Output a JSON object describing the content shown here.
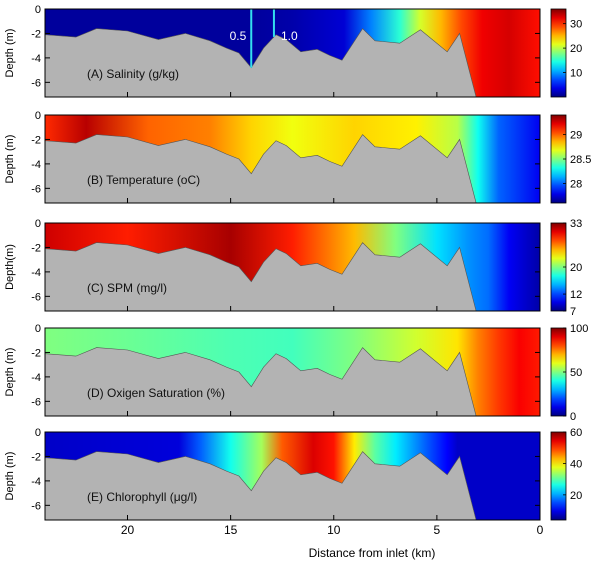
{
  "figure": {
    "xlabel": "Distance from inlet (km)",
    "x_ticks": [
      20,
      15,
      10,
      5,
      0
    ],
    "colors": {
      "bathymetry": "#b3b3b3",
      "salinity_line": "#33ddee",
      "frame": "#000000"
    }
  },
  "chart_data": [
    {
      "type": "heatmap",
      "id": "salinity",
      "title": "(A) Salinity (g/kg)",
      "ylabel": "Depth (m)",
      "xlim": [
        24,
        0
      ],
      "ylim": [
        -7.2,
        0
      ],
      "y_ticks": [
        0,
        -2,
        -4,
        -6
      ],
      "colorbar": {
        "range": [
          0,
          36
        ],
        "ticks": [
          10,
          20,
          30
        ]
      },
      "isolines": [
        {
          "label": "0.5",
          "x": 14
        },
        {
          "label": "1.0",
          "x": 12.9
        }
      ],
      "nodes": [
        {
          "x": 24,
          "v": 1
        },
        {
          "x": 14,
          "v": 1
        },
        {
          "x": 12,
          "v": 1.5
        },
        {
          "x": 9.5,
          "v": 3
        },
        {
          "x": 8.2,
          "v": 9
        },
        {
          "x": 6.8,
          "v": 15
        },
        {
          "x": 5.8,
          "v": 21
        },
        {
          "x": 4.8,
          "v": 25
        },
        {
          "x": 3.8,
          "v": 29
        },
        {
          "x": 2.8,
          "v": 32
        },
        {
          "x": 1.5,
          "v": 33
        },
        {
          "x": 0,
          "v": 31
        }
      ]
    },
    {
      "type": "heatmap",
      "id": "temperature",
      "title": "(B) Temperature (oC)",
      "ylabel": "Depth (m)",
      "xlim": [
        24,
        0
      ],
      "ylim": [
        -7.2,
        0
      ],
      "y_ticks": [
        0,
        -2,
        -4,
        -6
      ],
      "colorbar": {
        "range": [
          27.6,
          29.4
        ],
        "ticks": [
          28,
          28.5,
          29
        ]
      },
      "nodes": [
        {
          "x": 24,
          "v": 29.1
        },
        {
          "x": 22,
          "v": 29.3
        },
        {
          "x": 19,
          "v": 29.0
        },
        {
          "x": 16,
          "v": 28.95
        },
        {
          "x": 14,
          "v": 28.8
        },
        {
          "x": 12,
          "v": 28.7
        },
        {
          "x": 9,
          "v": 28.8
        },
        {
          "x": 6,
          "v": 28.75
        },
        {
          "x": 4,
          "v": 28.6
        },
        {
          "x": 3,
          "v": 28.3
        },
        {
          "x": 2,
          "v": 28.0
        },
        {
          "x": 0,
          "v": 27.8
        }
      ]
    },
    {
      "type": "heatmap",
      "id": "spm",
      "title": "(C) SPM (mg/l)",
      "ylabel": "Depth(m)",
      "xlim": [
        24,
        0
      ],
      "ylim": [
        -7.2,
        0
      ],
      "y_ticks": [
        0,
        -2,
        -4,
        -6
      ],
      "colorbar": {
        "range": [
          7,
          33
        ],
        "ticks": [
          7,
          12,
          20,
          33
        ]
      },
      "nodes": [
        {
          "x": 24,
          "v": 31
        },
        {
          "x": 20,
          "v": 29
        },
        {
          "x": 15,
          "v": 32
        },
        {
          "x": 12,
          "v": 29
        },
        {
          "x": 9,
          "v": 25
        },
        {
          "x": 7,
          "v": 20
        },
        {
          "x": 5,
          "v": 16
        },
        {
          "x": 3.5,
          "v": 14
        },
        {
          "x": 2.5,
          "v": 13
        },
        {
          "x": 1.5,
          "v": 10
        },
        {
          "x": 0,
          "v": 8
        }
      ]
    },
    {
      "type": "heatmap",
      "id": "oxygen",
      "title": "(D) Oxigen Saturation (%)",
      "ylabel": "Depth (m)",
      "xlim": [
        24,
        0
      ],
      "ylim": [
        -7.2,
        0
      ],
      "y_ticks": [
        0,
        -2,
        -4,
        -6
      ],
      "colorbar": {
        "range": [
          0,
          100
        ],
        "ticks": [
          0,
          50,
          100
        ]
      },
      "nodes": [
        {
          "x": 24,
          "v": 50
        },
        {
          "x": 20,
          "v": 48
        },
        {
          "x": 15,
          "v": 45
        },
        {
          "x": 12,
          "v": 44
        },
        {
          "x": 9,
          "v": 50
        },
        {
          "x": 6,
          "v": 58
        },
        {
          "x": 4,
          "v": 65
        },
        {
          "x": 3,
          "v": 75
        },
        {
          "x": 2,
          "v": 82
        },
        {
          "x": 1,
          "v": 88
        },
        {
          "x": 0,
          "v": 85
        }
      ]
    },
    {
      "type": "heatmap",
      "id": "chlorophyll",
      "title": "(E) Chlorophyll (μg/l)",
      "ylabel": "Depth (m)",
      "xlim": [
        24,
        0
      ],
      "ylim": [
        -7.2,
        0
      ],
      "y_ticks": [
        0,
        -2,
        -4,
        -6
      ],
      "colorbar": {
        "range": [
          4,
          60
        ],
        "ticks": [
          20,
          40,
          60
        ]
      },
      "nodes": [
        {
          "x": 24,
          "v": 8
        },
        {
          "x": 17.5,
          "v": 9
        },
        {
          "x": 16.5,
          "v": 16
        },
        {
          "x": 15,
          "v": 26
        },
        {
          "x": 13.5,
          "v": 34
        },
        {
          "x": 12.5,
          "v": 48
        },
        {
          "x": 11,
          "v": 55
        },
        {
          "x": 10,
          "v": 52
        },
        {
          "x": 9,
          "v": 40
        },
        {
          "x": 8,
          "v": 30
        },
        {
          "x": 7,
          "v": 24
        },
        {
          "x": 5.5,
          "v": 16
        },
        {
          "x": 4.5,
          "v": 11
        },
        {
          "x": 4,
          "v": 8
        },
        {
          "x": 0,
          "v": 8
        }
      ]
    }
  ],
  "bathymetry": {
    "bottom_depth": -7.2,
    "profile": [
      {
        "x": 24,
        "d": -2.1
      },
      {
        "x": 22.5,
        "d": -2.3
      },
      {
        "x": 21.5,
        "d": -1.6
      },
      {
        "x": 20,
        "d": -1.8
      },
      {
        "x": 18.5,
        "d": -2.5
      },
      {
        "x": 17.2,
        "d": -2.0
      },
      {
        "x": 16,
        "d": -2.6
      },
      {
        "x": 15.2,
        "d": -3.2
      },
      {
        "x": 14.6,
        "d": -3.6
      },
      {
        "x": 14,
        "d": -4.8
      },
      {
        "x": 13.4,
        "d": -3.2
      },
      {
        "x": 12.8,
        "d": -2.1
      },
      {
        "x": 12.3,
        "d": -2.5
      },
      {
        "x": 11.6,
        "d": -3.5
      },
      {
        "x": 10.8,
        "d": -3.3
      },
      {
        "x": 10.2,
        "d": -3.8
      },
      {
        "x": 9.6,
        "d": -4.2
      },
      {
        "x": 8.6,
        "d": -1.6
      },
      {
        "x": 8,
        "d": -2.6
      },
      {
        "x": 6.8,
        "d": -2.8
      },
      {
        "x": 5.8,
        "d": -1.7
      },
      {
        "x": 4.5,
        "d": -3.5
      },
      {
        "x": 3.9,
        "d": -2.0
      },
      {
        "x": 3.1,
        "d": -7.2
      }
    ]
  }
}
